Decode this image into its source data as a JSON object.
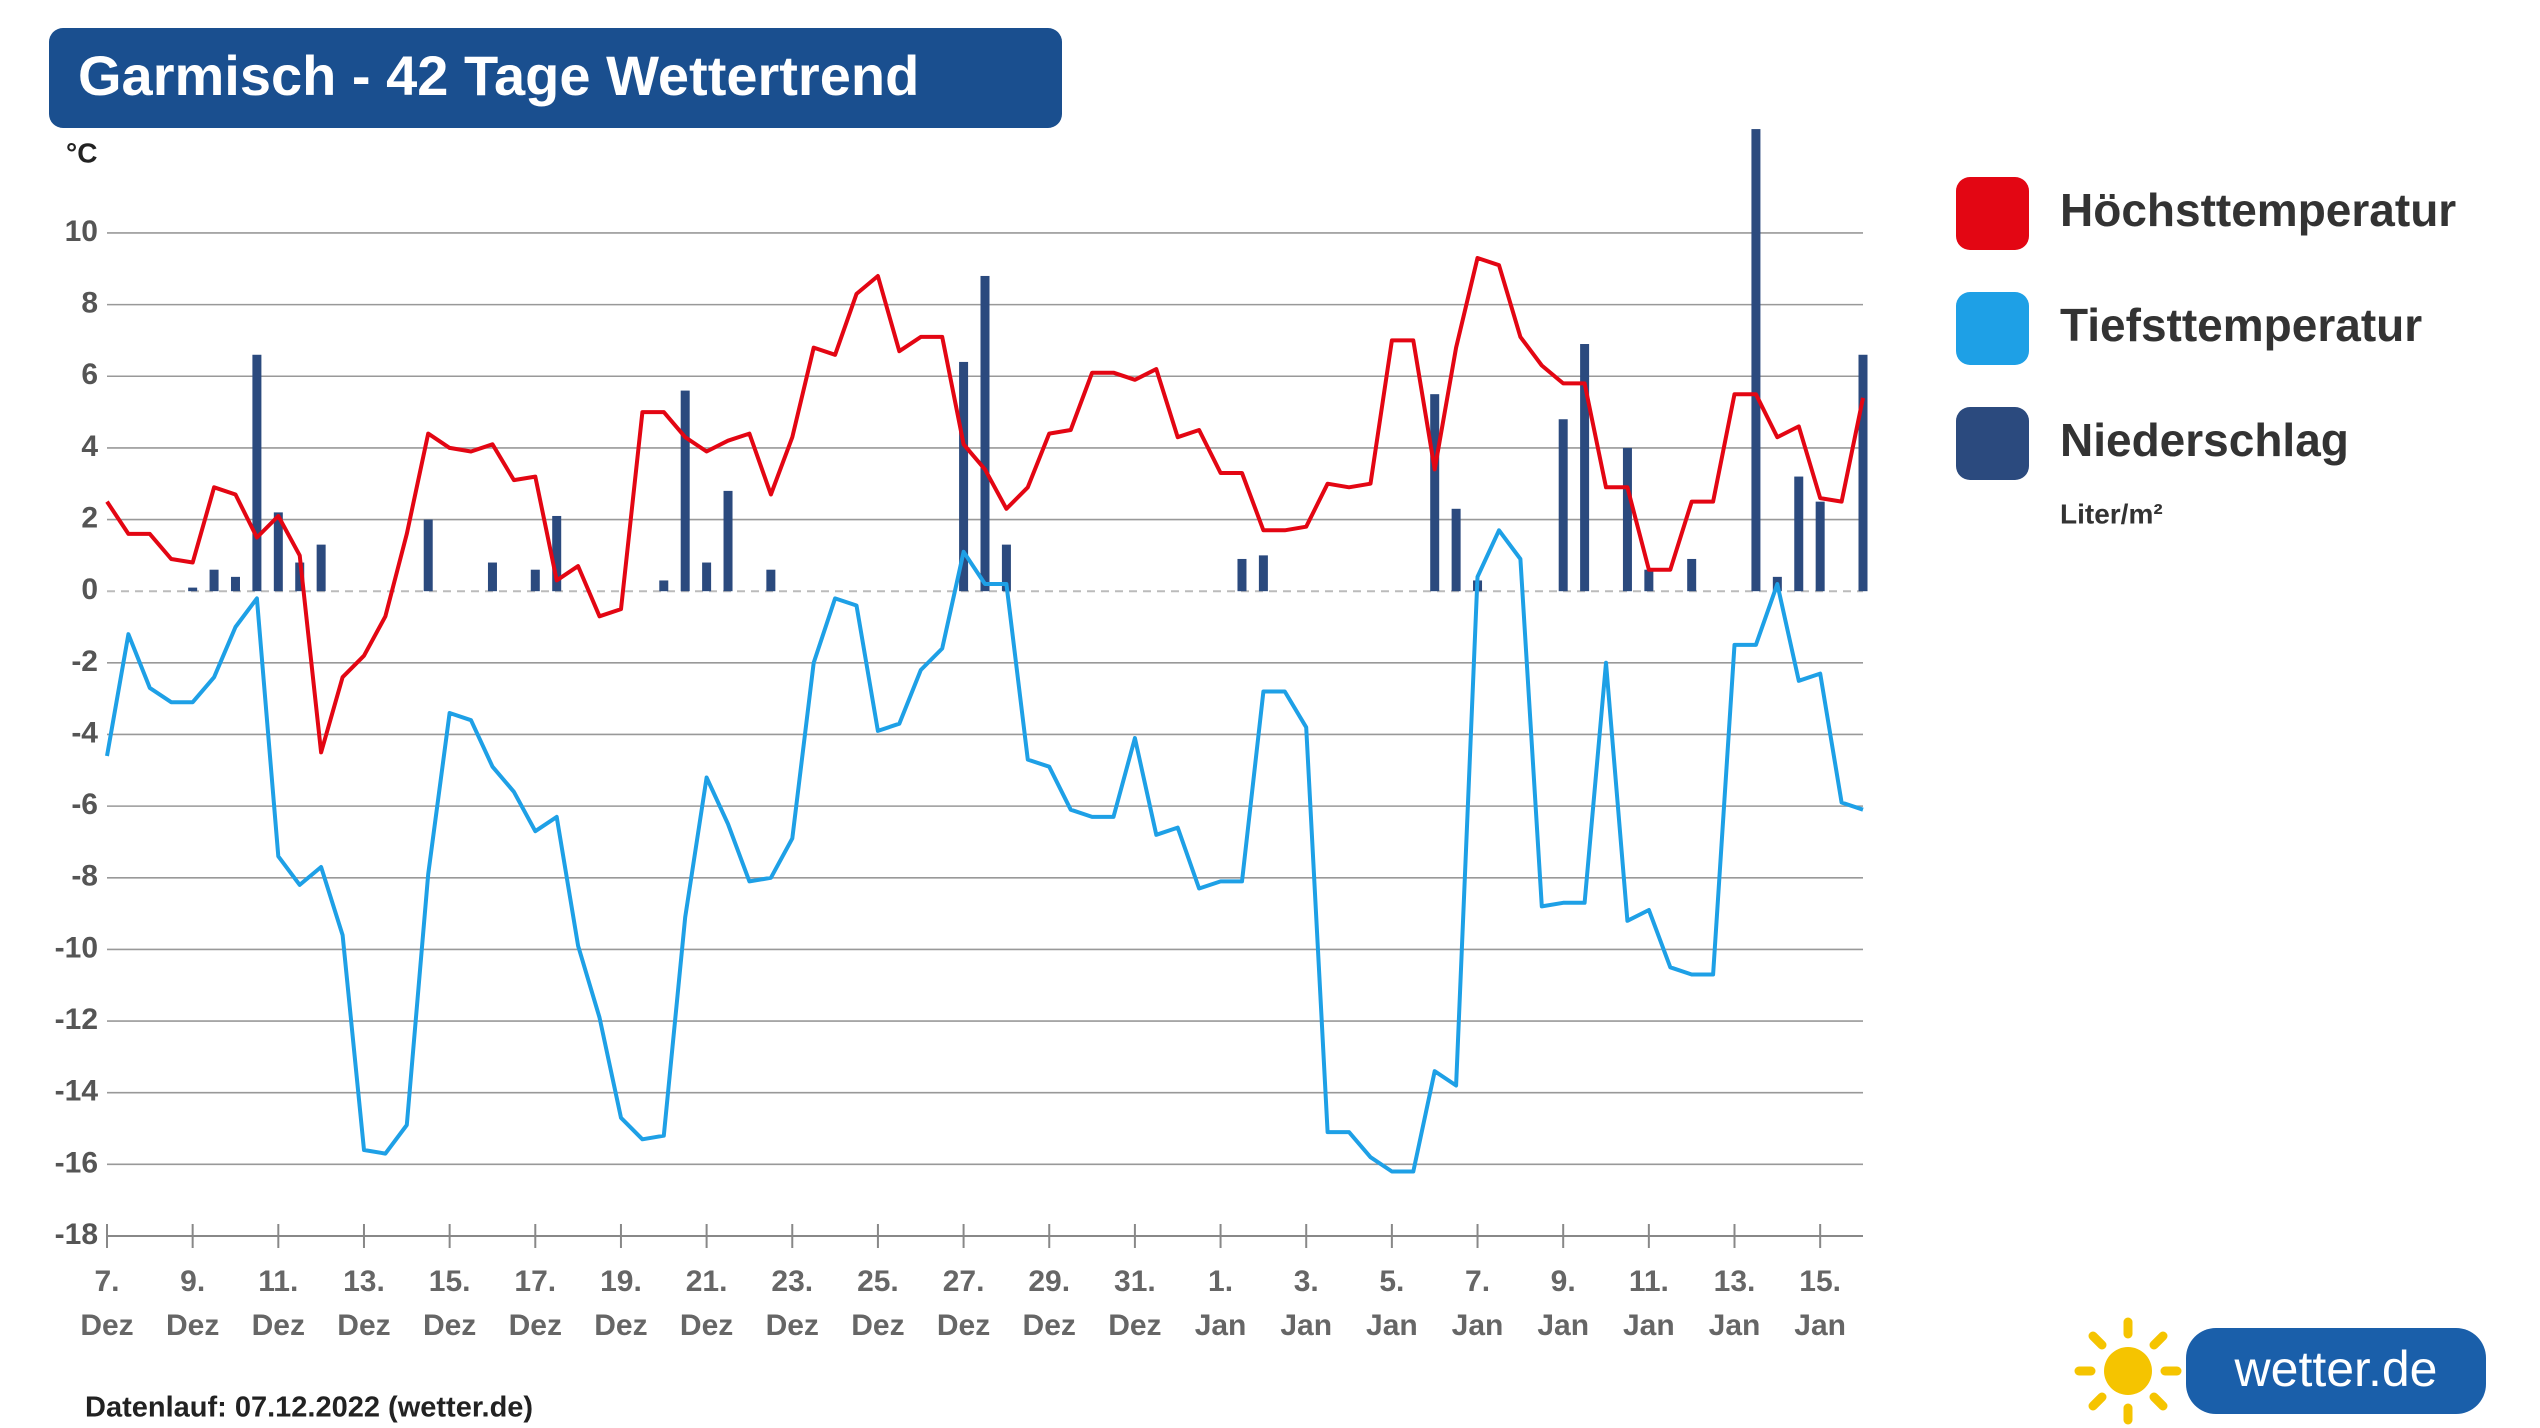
{
  "title": "Garmisch - 42 Tage Wettertrend",
  "chart_data": {
    "type": "line",
    "y_unit": "°C",
    "categories": [
      "7. Dez",
      null,
      null,
      null,
      "9. Dez",
      null,
      null,
      null,
      "11. Dez",
      null,
      null,
      null,
      "13. Dez",
      null,
      null,
      null,
      "15. Dez",
      null,
      null,
      null,
      "17. Dez",
      null,
      null,
      null,
      "19. Dez",
      null,
      null,
      null,
      "21. Dez",
      null,
      null,
      null,
      "23. Dez",
      null,
      null,
      null,
      "25. Dez",
      null,
      null,
      null,
      "27. Dez",
      null,
      null,
      null,
      "29. Dez",
      null,
      null,
      null,
      "31. Dez",
      null,
      null,
      null,
      "1. Jan",
      null,
      null,
      null,
      "3. Jan",
      null,
      null,
      null,
      "5. Jan",
      null,
      null,
      null,
      "7. Jan",
      null,
      null,
      null,
      "9. Jan",
      null,
      null,
      null,
      "11. Jan",
      null,
      null,
      null,
      "13. Jan",
      null,
      null,
      null,
      "15. Jan",
      null,
      null
    ],
    "ylim": [
      -18,
      13
    ],
    "yticks": [
      10,
      8,
      6,
      4,
      2,
      0,
      -2,
      -4,
      -6,
      -8,
      -10,
      -12,
      -14,
      -16,
      -18
    ],
    "grid": true,
    "series": [
      {
        "name": "Höchsttemperatur",
        "type": "line",
        "color": "#e30613",
        "values": [
          2.5,
          1.6,
          1.6,
          0.9,
          0.8,
          2.9,
          2.7,
          1.5,
          2.1,
          1.0,
          -4.5,
          -2.4,
          -1.8,
          -0.7,
          1.6,
          4.4,
          4.0,
          3.9,
          4.1,
          3.1,
          3.2,
          0.3,
          0.7,
          -0.7,
          -0.5,
          5.0,
          5.0,
          4.3,
          3.9,
          4.2,
          4.4,
          2.7,
          4.3,
          6.8,
          6.6,
          8.3,
          8.8,
          6.7,
          7.1,
          7.1,
          4.1,
          3.4,
          2.3,
          2.9,
          4.4,
          4.5,
          6.1,
          6.1,
          5.9,
          6.2,
          4.3,
          4.5,
          3.3,
          3.3,
          1.7,
          1.7,
          1.8,
          3.0,
          2.9,
          3.0,
          7.0,
          7.0,
          3.4,
          6.8,
          9.3,
          9.1,
          7.1,
          6.3,
          5.8,
          5.8,
          2.9,
          2.9,
          0.6,
          0.6,
          2.5,
          2.5,
          5.5,
          5.5,
          4.3,
          4.6,
          2.6,
          2.5,
          5.4
        ]
      },
      {
        "name": "Tiefsttemperatur",
        "type": "line",
        "color": "#1ea0e6",
        "values": [
          -4.6,
          -1.2,
          -2.7,
          -3.1,
          -3.1,
          -2.4,
          -1.0,
          -0.2,
          -7.4,
          -8.2,
          -7.7,
          -9.6,
          -15.6,
          -15.7,
          -14.9,
          -7.9,
          -3.4,
          -3.6,
          -4.9,
          -5.6,
          -6.7,
          -6.3,
          -9.9,
          -11.9,
          -14.7,
          -15.3,
          -15.2,
          -9.1,
          -5.2,
          -6.5,
          -8.1,
          -8.0,
          -6.9,
          -2.0,
          -0.2,
          -0.4,
          -3.9,
          -3.7,
          -2.2,
          -1.6,
          1.1,
          0.2,
          0.2,
          -4.7,
          -4.9,
          -6.1,
          -6.3,
          -6.3,
          -4.1,
          -6.8,
          -6.6,
          -8.3,
          -8.1,
          -8.1,
          -2.8,
          -2.8,
          -3.8,
          -15.1,
          -15.1,
          -15.8,
          -16.2,
          -16.2,
          -13.4,
          -13.8,
          0.4,
          1.7,
          0.9,
          -8.8,
          -8.7,
          -8.7,
          -2.0,
          -9.2,
          -8.9,
          -10.5,
          -10.7,
          -10.7,
          -1.5,
          -1.5,
          0.2,
          -2.5,
          -2.3,
          -5.9,
          -6.1
        ]
      },
      {
        "name": "Niederschlag",
        "type": "bar",
        "unit": "Liter/m²",
        "color": "#2b4a7e",
        "values": [
          0,
          0,
          0,
          0,
          0.1,
          0.6,
          0.4,
          6.6,
          2.2,
          0.8,
          1.3,
          0,
          0,
          0,
          0,
          2.0,
          0,
          0,
          0.8,
          0,
          0.6,
          2.1,
          0,
          0,
          0,
          0,
          0.3,
          5.6,
          0.8,
          2.8,
          0,
          0.6,
          0,
          0,
          0,
          0,
          0,
          0,
          0,
          0,
          6.4,
          8.8,
          1.3,
          0,
          0,
          0,
          0,
          0,
          0,
          0,
          0,
          0,
          0,
          0.9,
          1.0,
          0,
          0,
          0,
          0,
          0,
          0,
          0,
          5.5,
          2.3,
          0.3,
          0,
          0,
          0,
          4.8,
          6.9,
          0,
          4.0,
          0.6,
          0,
          0.9,
          0,
          0,
          12.9,
          0.4,
          3.2,
          2.5,
          0,
          6.6
        ]
      }
    ]
  },
  "footer": "Datenlauf: 07.12.2022 (wetter.de)",
  "logo": "wetter.de"
}
